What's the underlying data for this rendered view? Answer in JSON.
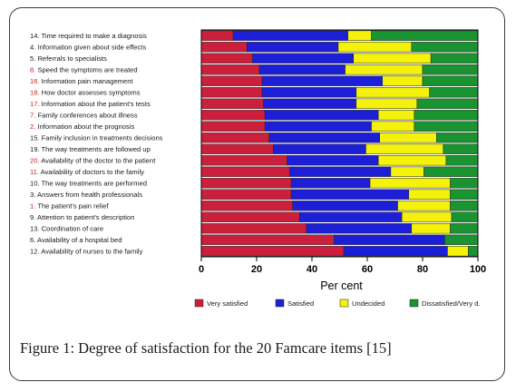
{
  "chart_data": {
    "type": "bar",
    "orientation": "horizontal",
    "stacked": true,
    "xlabel": "Per cent",
    "xlim": [
      0,
      100
    ],
    "xticks": [
      0,
      20,
      40,
      60,
      80,
      100
    ],
    "grid": false,
    "legend_position": "bottom",
    "items": [
      {
        "num": "14.",
        "text": "Time required to make a diagnosis",
        "num_color": "#1a1a1a"
      },
      {
        "num": "4.",
        "text": "Information given about side effects",
        "num_color": "#1a1a1a"
      },
      {
        "num": "5.",
        "text": "Referrals to specialists",
        "num_color": "#1a1a1a"
      },
      {
        "num": "8.",
        "text": "Speed the symptoms are treated",
        "num_color": "#cc2222"
      },
      {
        "num": "16.",
        "text": "Information pain management",
        "num_color": "#cc2222"
      },
      {
        "num": "18.",
        "text": "How doctor assesses symptoms",
        "num_color": "#cc2222"
      },
      {
        "num": "17.",
        "text": "Information about the patient's tests",
        "num_color": "#cc2222"
      },
      {
        "num": "7.",
        "text": "Family conferences about illness",
        "num_color": "#cc2222"
      },
      {
        "num": "2.",
        "text": "Information about the prognosis",
        "num_color": "#cc2222"
      },
      {
        "num": "15.",
        "text": "Family inclusion in treatments decisions",
        "num_color": "#1a1a1a"
      },
      {
        "num": "19.",
        "text": "The way treatments are followed up",
        "num_color": "#1a1a1a"
      },
      {
        "num": "20.",
        "text": "Availability of the doctor to the patient",
        "num_color": "#cc2222"
      },
      {
        "num": "11.",
        "text": "Availability of doctors to the family",
        "num_color": "#cc2222"
      },
      {
        "num": "10.",
        "text": "The way treatments are performed",
        "num_color": "#1a1a1a"
      },
      {
        "num": "3.",
        "text": "Answers from health professionals",
        "num_color": "#1a1a1a"
      },
      {
        "num": "1.",
        "text": "The patient's pain relief",
        "num_color": "#cc2222"
      },
      {
        "num": "9.",
        "text": "Attention to patient's description",
        "num_color": "#1a1a1a"
      },
      {
        "num": "13.",
        "text": "Coordination of care",
        "num_color": "#1a1a1a"
      },
      {
        "num": "6.",
        "text": "Availability of a hospital bed",
        "num_color": "#1a1a1a"
      },
      {
        "num": "12.",
        "text": "Availability of nurses to the family",
        "num_color": "#1a1a1a"
      }
    ],
    "series": [
      {
        "name": "Very satisfied",
        "color": "#cc1f3c",
        "values": [
          11.5,
          16.5,
          18.5,
          21,
          22,
          22,
          22.5,
          23,
          23,
          24.5,
          26,
          31,
          32,
          32.5,
          32.5,
          33,
          35.5,
          38,
          48,
          51.5
        ]
      },
      {
        "name": "Satisfied",
        "color": "#1c1fd6",
        "values": [
          41.5,
          33,
          36.5,
          31,
          43.5,
          34,
          33.5,
          41,
          38.5,
          40,
          33.5,
          33,
          36.5,
          28.5,
          42.5,
          38,
          37,
          38,
          40,
          37.5
        ]
      },
      {
        "name": "Undecided",
        "color": "#f4f20a",
        "values": [
          8.5,
          26.5,
          28,
          28,
          14.5,
          26.5,
          22,
          13,
          15.5,
          20.5,
          28,
          24.5,
          12,
          29,
          15,
          19,
          18,
          14,
          0,
          7.5
        ]
      },
      {
        "name": "Dissatisfied/Very d.",
        "color": "#1a9430",
        "values": [
          38.5,
          24,
          17,
          20,
          20,
          17.5,
          22,
          23,
          23,
          15,
          12.5,
          11.5,
          19.5,
          10,
          10,
          10,
          9.5,
          10,
          12,
          3.5
        ]
      }
    ]
  },
  "caption": "Figure 1: Degree of satisfaction for the 20 Famcare items [15]"
}
